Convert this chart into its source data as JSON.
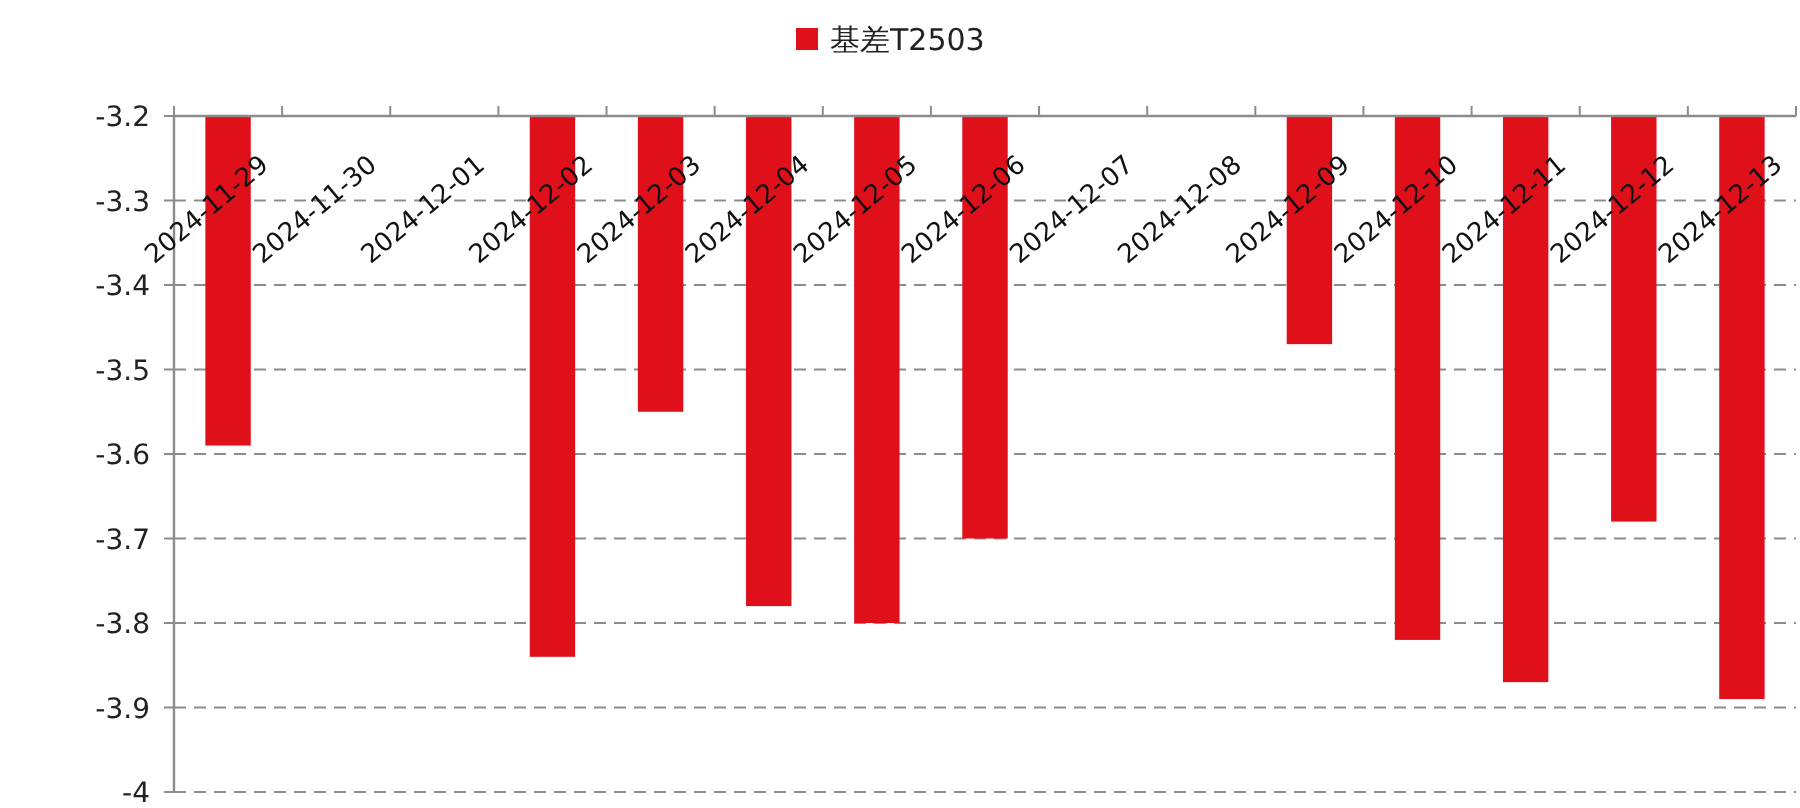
{
  "chart_data": {
    "type": "bar",
    "categories": [
      "2024-11-29",
      "2024-11-30",
      "2024-12-01",
      "2024-12-02",
      "2024-12-03",
      "2024-12-04",
      "2024-12-05",
      "2024-12-06",
      "2024-12-07",
      "2024-12-08",
      "2024-12-09",
      "2024-12-10",
      "2024-12-11",
      "2024-12-12",
      "2024-12-13"
    ],
    "series": [
      {
        "name": "基差T2503",
        "color": "#e0101a",
        "values": [
          -3.59,
          null,
          null,
          -3.84,
          -3.55,
          -3.78,
          -3.8,
          -3.7,
          null,
          null,
          -3.47,
          -3.82,
          -3.87,
          -3.68,
          -3.89
        ]
      }
    ],
    "ylim": [
      -4,
      -3.2
    ],
    "yticks": [
      -3.2,
      -3.3,
      -3.4,
      -3.5,
      -3.6,
      -3.7,
      -3.8,
      -3.9,
      -4
    ],
    "grid": "y",
    "legend": "top"
  }
}
